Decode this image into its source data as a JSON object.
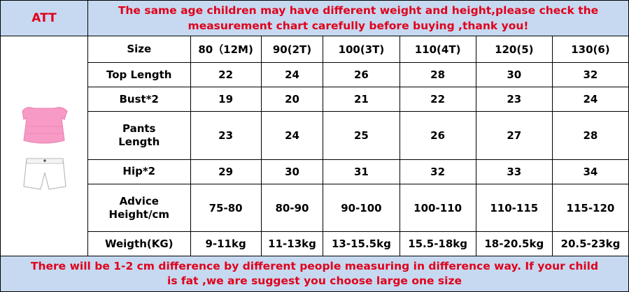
{
  "header": {
    "att": "ATT",
    "notice": "The same age children may have different weight and height,please check the measurement chart carefully before buying ,thank you!"
  },
  "table": {
    "rows": [
      [
        "Size",
        "80（12M)",
        "90(2T)",
        "100(3T)",
        "110(4T)",
        "120(5)",
        "130(6)"
      ],
      [
        "Top Length",
        "22",
        "24",
        "26",
        "28",
        "30",
        "32"
      ],
      [
        "Bust*2",
        "19",
        "20",
        "21",
        "22",
        "23",
        "24"
      ],
      [
        "Pants Length",
        "23",
        "24",
        "25",
        "26",
        "27",
        "28"
      ],
      [
        "Hip*2",
        "29",
        "30",
        "31",
        "32",
        "33",
        "34"
      ],
      [
        "Advice Height/cm",
        "75-80",
        "80-90",
        "90-100",
        "100-110",
        "110-115",
        "115-120"
      ],
      [
        "Weigth(KG)",
        "9-11kg",
        "11-13kg",
        "13-15.5kg",
        "15.5-18kg",
        "18-20.5kg",
        "20.5-23kg"
      ]
    ]
  },
  "footer": {
    "note": "There will be 1-2 cm difference by different people measuring in difference way. If your child is fat ,we are suggest you choose large one size"
  }
}
